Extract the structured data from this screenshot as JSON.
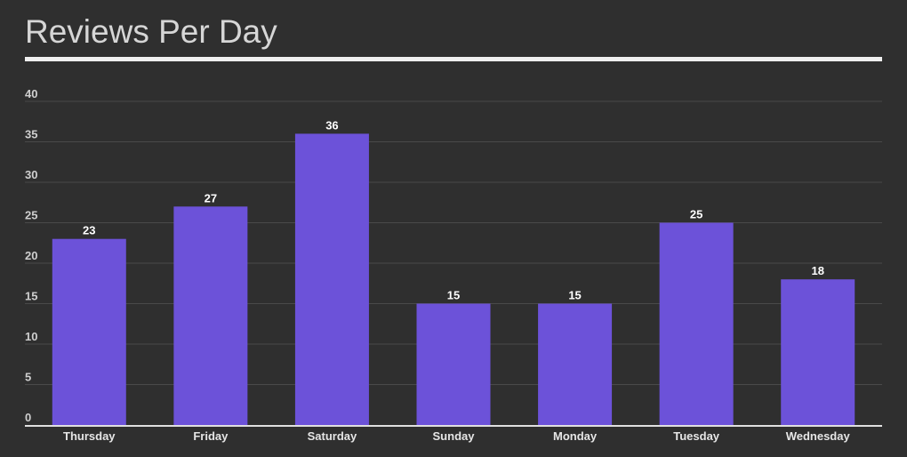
{
  "chart_data": {
    "type": "bar",
    "title": "Reviews Per Day",
    "categories": [
      "Thursday",
      "Friday",
      "Saturday",
      "Sunday",
      "Monday",
      "Tuesday",
      "Wednesday"
    ],
    "values": [
      23,
      27,
      36,
      15,
      15,
      25,
      18
    ],
    "ylim": [
      0,
      40
    ],
    "yticks": [
      0,
      5,
      10,
      15,
      20,
      25,
      30,
      35,
      40
    ],
    "grid": true,
    "data_labels": true,
    "bar_color": "#6c52d9",
    "background_color": "#2f2f2f"
  }
}
